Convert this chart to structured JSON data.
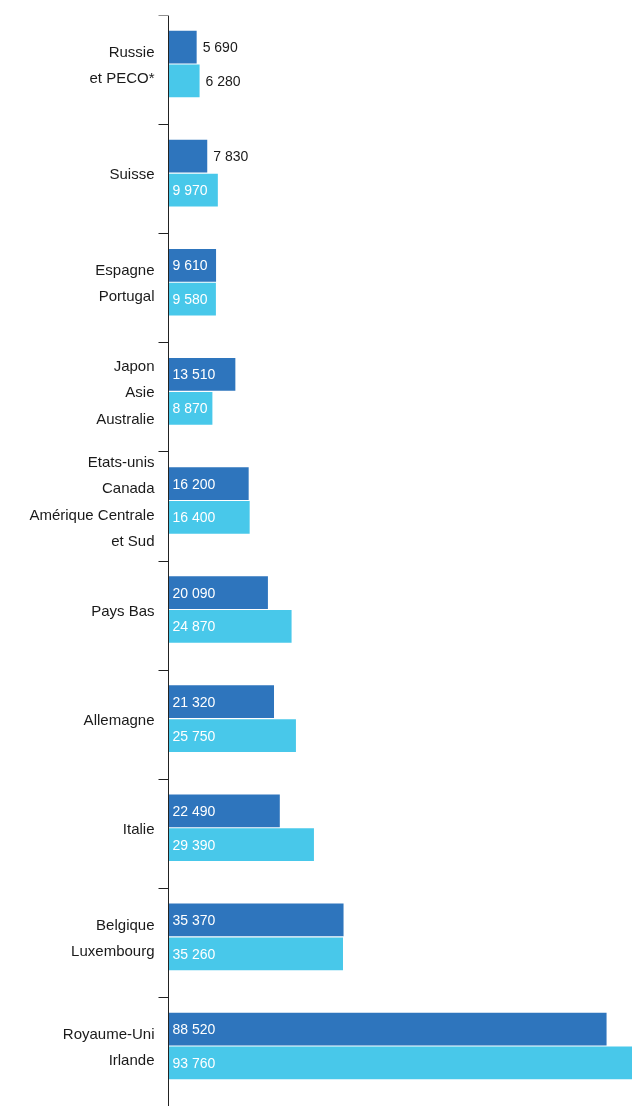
{
  "chart_data": {
    "type": "bar",
    "orientation": "horizontal",
    "data_labels": true,
    "categories": [
      "Russie\net PECO*",
      "Suisse",
      "Espagne\nPortugal",
      "Japon\nAsie\nAustralie",
      "Etats-unis\nCanada\nAmérique Centrale\net Sud",
      "Pays Bas",
      "Allemagne",
      "Italie",
      "Belgique\nLuxembourg",
      "Royaume-Uni\nIrlande"
    ],
    "series": [
      {
        "color": "#2e75bd",
        "values": [
          5690,
          7830,
          9610,
          13510,
          16200,
          20090,
          21320,
          22490,
          35370,
          88520
        ]
      },
      {
        "color": "#48c8ea",
        "values": [
          6280,
          9970,
          9580,
          8870,
          16400,
          24870,
          25750,
          29390,
          35260,
          93760
        ]
      }
    ]
  }
}
